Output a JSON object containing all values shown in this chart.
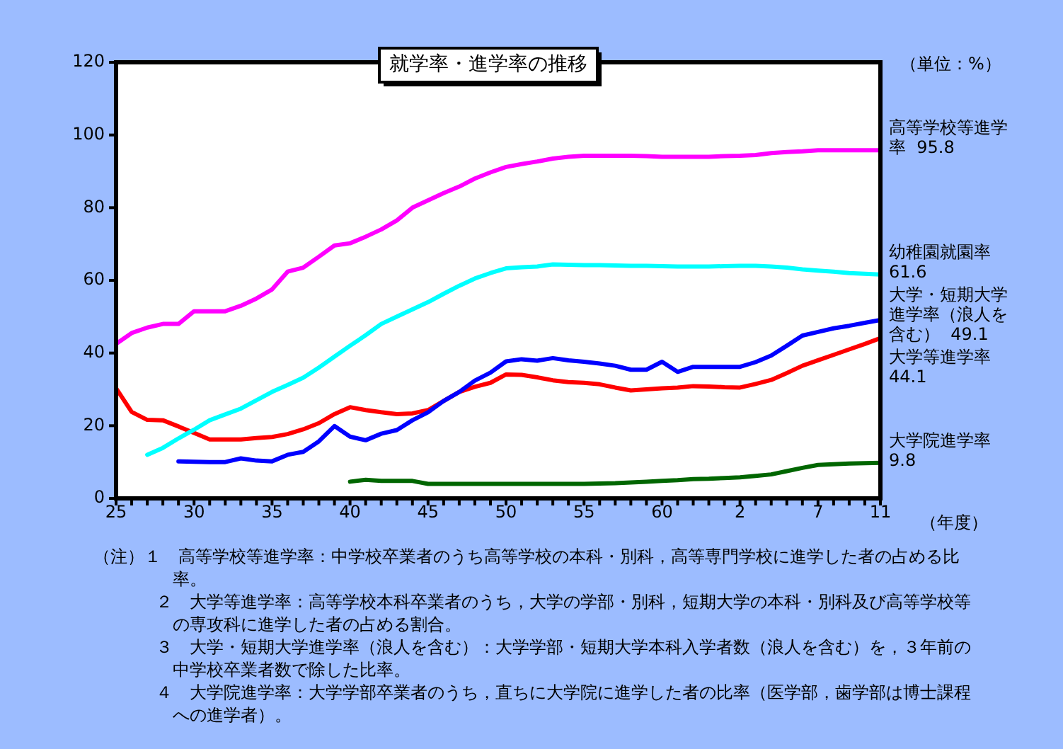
{
  "chart_data": {
    "type": "line",
    "title": "就学率・進学率の推移",
    "xlabel": "（年度）",
    "annotations": [
      "（単位：%）",
      "（注）１　高等学校等進学率：中学校卒業者のうち高等学校の本科・別科，高等専門学校に進学した者の占める比率。",
      "２　大学等進学率：高等学校本科卒業者のうち，大学の学部・別科，短期大学の本科・別科及び高等学校等の専攻科に進学した者の占める割合。",
      "３　大学・短期大学進学率（浪人を含む）：大学学部・短期大学本科入学者数（浪人を含む）を，３年前の中学校卒業者数で除した比率。",
      "４　大学院進学率：大学学部卒業者のうち，直ちに大学院に進学した者の比率（医学部，歯学部は博士課程への進学者）。"
    ],
    "categories": [
      "25",
      null,
      null,
      null,
      null,
      "30",
      null,
      null,
      null,
      null,
      "35",
      null,
      null,
      null,
      null,
      "40",
      null,
      null,
      null,
      null,
      "45",
      null,
      null,
      null,
      null,
      "50",
      null,
      null,
      null,
      null,
      "55",
      null,
      null,
      null,
      null,
      "60",
      null,
      null,
      null,
      null,
      "2",
      null,
      null,
      null,
      null,
      "7",
      null,
      null,
      null,
      "11"
    ],
    "ylim": [
      0,
      120
    ],
    "yticks": [
      0,
      20,
      40,
      60,
      80,
      100,
      120
    ],
    "grid": false,
    "legend": false,
    "marker": "none",
    "line_style": "solid",
    "series": [
      {
        "name": "高等学校等進学率",
        "color": "#ff00ff",
        "values": [
          42.5,
          45.5,
          47,
          48,
          48,
          51.5,
          51.5,
          51.5,
          53,
          55,
          57.5,
          62.4,
          63.5,
          66.5,
          69.6,
          70.2,
          72,
          74,
          76.5,
          80,
          82,
          84,
          85.8,
          88,
          89.7,
          91.2,
          92,
          92.7,
          93.5,
          94,
          94.3,
          94.3,
          94.3,
          94.3,
          94.2,
          94,
          94,
          94,
          94,
          94.2,
          94.3,
          94.5,
          95,
          95.3,
          95.5,
          95.8,
          95.8,
          95.8,
          95.8,
          95.8
        ],
        "value_labels": [
          null,
          null,
          null,
          null,
          null,
          null,
          null,
          null,
          null,
          null,
          null,
          null,
          null,
          null,
          null,
          null,
          null,
          null,
          null,
          null,
          null,
          null,
          null,
          null,
          null,
          null,
          null,
          null,
          null,
          null,
          null,
          null,
          null,
          null,
          null,
          null,
          null,
          null,
          null,
          null,
          null,
          null,
          null,
          null,
          null,
          null,
          null,
          null,
          null,
          "95.8"
        ]
      },
      {
        "name": "幼稚園就園率",
        "color": "#00ffff",
        "values": [
          null,
          null,
          12,
          13.9,
          16.5,
          18.9,
          21.5,
          23.1,
          24.7,
          27,
          29.3,
          31.2,
          33.2,
          36,
          39,
          42,
          44.9,
          48,
          50,
          52,
          54,
          56.3,
          58.5,
          60.5,
          62,
          63.3,
          63.6,
          63.8,
          64.4,
          64.3,
          64.2,
          64.2,
          64.1,
          64,
          64,
          63.9,
          63.8,
          63.8,
          63.8,
          63.9,
          64,
          64,
          63.8,
          63.5,
          63,
          62.7,
          62.4,
          62,
          61.8,
          61.6
        ],
        "value_labels": [
          null,
          null,
          null,
          null,
          null,
          null,
          null,
          null,
          null,
          null,
          null,
          null,
          null,
          null,
          null,
          null,
          null,
          null,
          null,
          null,
          null,
          null,
          null,
          null,
          null,
          null,
          null,
          null,
          null,
          null,
          null,
          null,
          null,
          null,
          null,
          null,
          null,
          null,
          null,
          null,
          null,
          null,
          null,
          null,
          null,
          null,
          null,
          null,
          null,
          "61.6"
        ]
      },
      {
        "name": "大学・短期大学進学率（浪人を含む）",
        "color": "#0000ff",
        "values": [
          null,
          null,
          null,
          null,
          10.2,
          10.1,
          10,
          10,
          11,
          10.4,
          10.2,
          12,
          12.8,
          15.7,
          19.9,
          17,
          16,
          17.8,
          18.8,
          21.5,
          23.7,
          26.8,
          29.3,
          32.4,
          34.6,
          37.7,
          38.3,
          37.9,
          38.6,
          38,
          37.6,
          37.1,
          36.5,
          35.4,
          35.4,
          37.6,
          34.8,
          36.2,
          36.2,
          36.2,
          36.2,
          37.5,
          39.3,
          42,
          44.8,
          45.8,
          46.8,
          47.5,
          48.3,
          49.1
        ],
        "value_labels": [
          null,
          null,
          null,
          null,
          null,
          null,
          null,
          null,
          null,
          null,
          null,
          null,
          null,
          null,
          null,
          null,
          null,
          null,
          null,
          null,
          null,
          null,
          null,
          null,
          null,
          null,
          null,
          null,
          null,
          null,
          null,
          null,
          null,
          null,
          null,
          null,
          null,
          null,
          null,
          null,
          null,
          null,
          null,
          null,
          null,
          null,
          null,
          null,
          null,
          "49.1"
        ]
      },
      {
        "name": "大学等進学率",
        "color": "#ff0000",
        "values": [
          30.3,
          23.8,
          21.6,
          21.5,
          19.8,
          18,
          16.2,
          16.2,
          16.2,
          16.6,
          16.9,
          17.7,
          19,
          20.7,
          23.2,
          25.1,
          24.3,
          23.7,
          23.2,
          23.4,
          24.3,
          26.8,
          29.3,
          30.7,
          31.8,
          34.1,
          34,
          33.3,
          32.5,
          32,
          31.8,
          31.4,
          30.5,
          29.7,
          30,
          30.3,
          30.5,
          30.9,
          30.8,
          30.6,
          30.5,
          31.5,
          32.6,
          34.5,
          36.5,
          38,
          39.5,
          41,
          42.5,
          44.1
        ],
        "value_labels": [
          null,
          null,
          null,
          null,
          null,
          null,
          null,
          null,
          null,
          null,
          null,
          null,
          null,
          null,
          null,
          null,
          null,
          null,
          null,
          null,
          null,
          null,
          null,
          null,
          null,
          null,
          null,
          null,
          null,
          null,
          null,
          null,
          null,
          null,
          null,
          null,
          null,
          null,
          null,
          null,
          null,
          null,
          null,
          null,
          null,
          null,
          null,
          null,
          null,
          "44.1"
        ]
      },
      {
        "name": "大学院進学率",
        "color": "#006600",
        "values": [
          null,
          null,
          null,
          null,
          null,
          null,
          null,
          null,
          null,
          null,
          null,
          null,
          null,
          null,
          null,
          4.6,
          5.1,
          4.8,
          4.8,
          4.8,
          4,
          4,
          4,
          4,
          4,
          4,
          4,
          4,
          4,
          4,
          4,
          4.1,
          4.2,
          4.4,
          4.6,
          4.8,
          5,
          5.3,
          5.4,
          5.6,
          5.8,
          6.2,
          6.6,
          7.5,
          8.4,
          9.2,
          9.4,
          9.6,
          9.7,
          9.8
        ],
        "value_labels": [
          null,
          null,
          null,
          null,
          null,
          null,
          null,
          null,
          null,
          null,
          null,
          null,
          null,
          null,
          null,
          null,
          null,
          null,
          null,
          null,
          null,
          null,
          null,
          null,
          null,
          null,
          null,
          null,
          null,
          null,
          null,
          null,
          null,
          null,
          null,
          null,
          null,
          null,
          null,
          null,
          null,
          null,
          null,
          null,
          null,
          null,
          null,
          null,
          null,
          "9.8"
        ]
      }
    ]
  }
}
